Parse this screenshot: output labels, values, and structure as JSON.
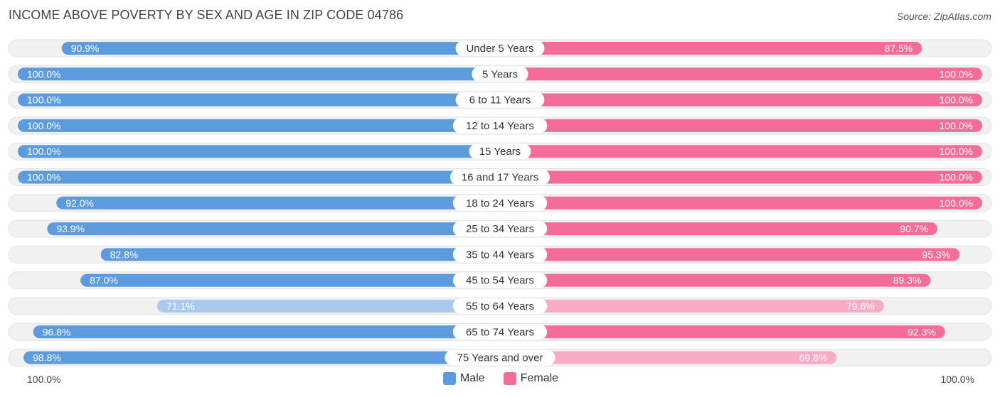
{
  "header": {
    "title": "INCOME ABOVE POVERTY BY SEX AND AGE IN ZIP CODE 04786",
    "source": "Source: ZipAtlas.com"
  },
  "axis": {
    "left_label": "100.0%",
    "right_label": "100.0%"
  },
  "legend": {
    "male_label": "Male",
    "female_label": "Female"
  },
  "colors": {
    "male": "#5b9bde",
    "male_light": "#a9c9ee",
    "female": "#f46d98",
    "female_light": "#f8abc4",
    "track": "#efefef"
  },
  "chart_data": {
    "type": "bar",
    "title": "INCOME ABOVE POVERTY BY SEX AND AGE IN ZIP CODE 04786",
    "categories": [
      "Under 5 Years",
      "5 Years",
      "6 to 11 Years",
      "12 to 14 Years",
      "15 Years",
      "16 and 17 Years",
      "18 to 24 Years",
      "25 to 34 Years",
      "35 to 44 Years",
      "45 to 54 Years",
      "55 to 64 Years",
      "65 to 74 Years",
      "75 Years and over"
    ],
    "series": [
      {
        "name": "Male",
        "values": [
          90.9,
          100.0,
          100.0,
          100.0,
          100.0,
          100.0,
          92.0,
          93.9,
          82.8,
          87.0,
          71.1,
          96.8,
          98.8
        ]
      },
      {
        "name": "Female",
        "values": [
          87.5,
          100.0,
          100.0,
          100.0,
          100.0,
          100.0,
          100.0,
          90.7,
          95.3,
          89.3,
          79.6,
          92.3,
          69.8
        ]
      }
    ],
    "xlim": [
      0,
      100
    ],
    "legend_position": "bottom-center"
  }
}
